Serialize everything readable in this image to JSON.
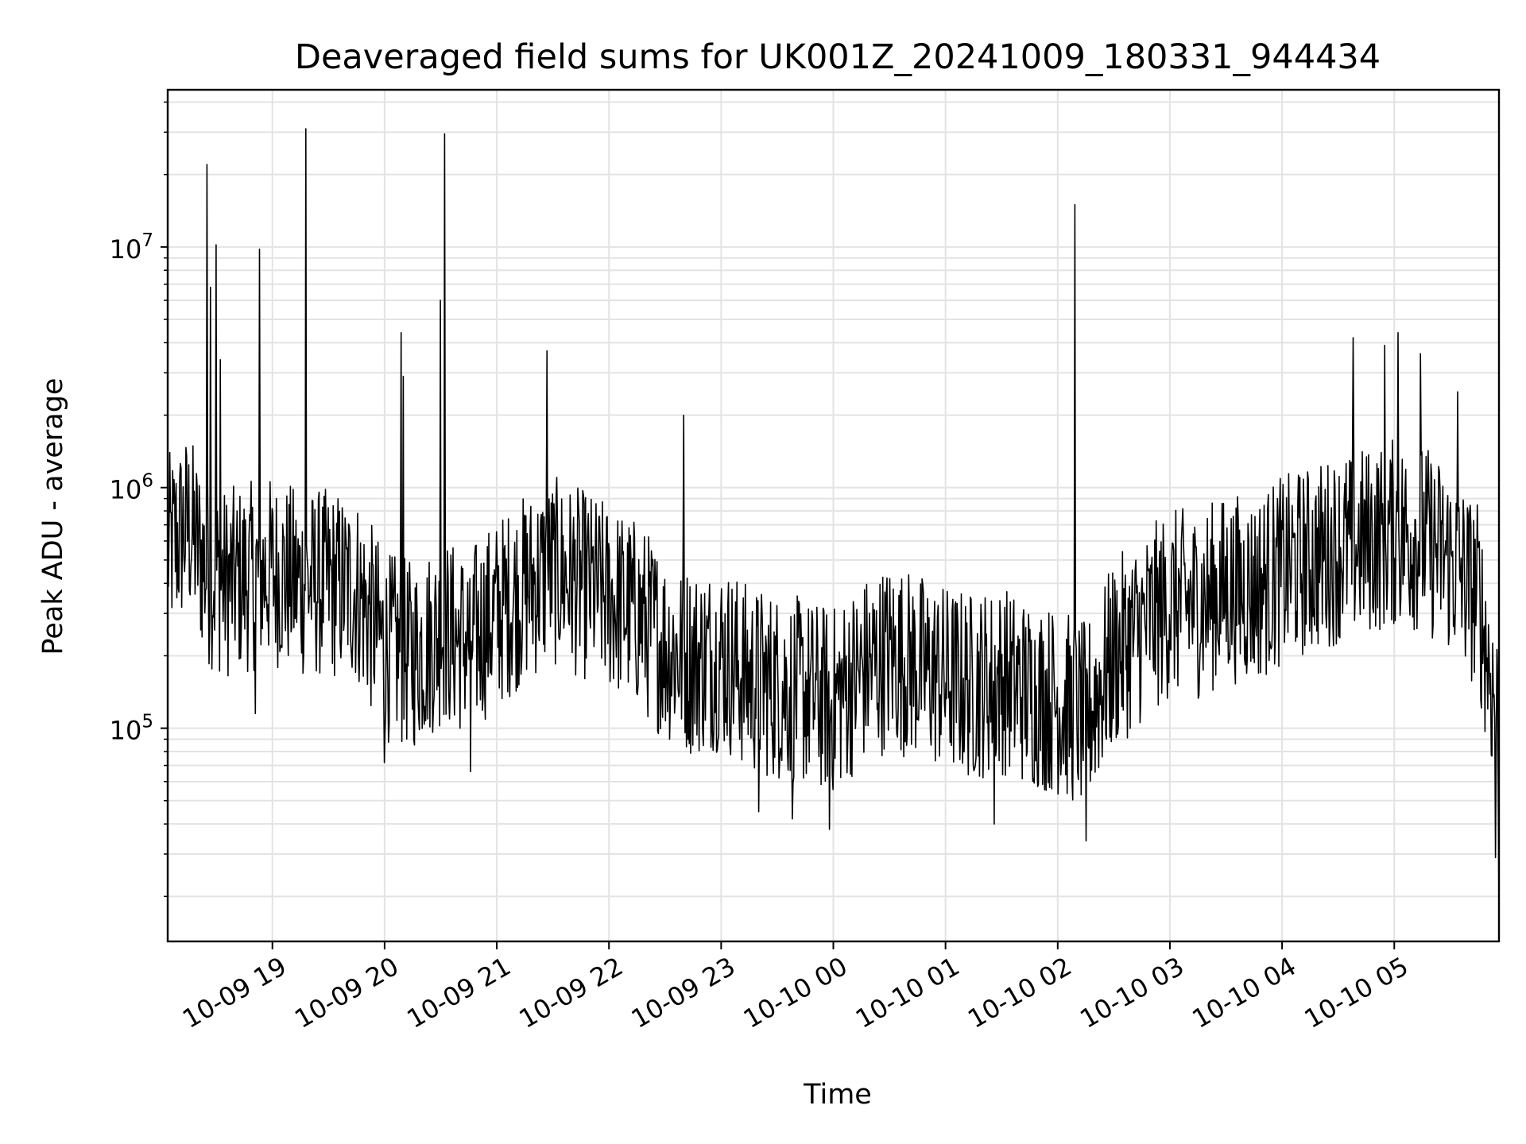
{
  "chart_data": {
    "type": "line",
    "title": "Deaveraged field sums for UK001Z_20241009_180331_944434",
    "xlabel": "Time",
    "ylabel": "Peak ADU - average",
    "yscale": "log",
    "ylim": [
      13000,
      45000000
    ],
    "xlim": [
      "2024-10-09 18:04",
      "2024-10-10 05:56"
    ],
    "grid": true,
    "line_color": "#000000",
    "grid_color": "#e3e3e3",
    "x_ticks": [
      {
        "value": "2024-10-09 19:00",
        "label": "10-09 19"
      },
      {
        "value": "2024-10-09 20:00",
        "label": "10-09 20"
      },
      {
        "value": "2024-10-09 21:00",
        "label": "10-09 21"
      },
      {
        "value": "2024-10-09 22:00",
        "label": "10-09 22"
      },
      {
        "value": "2024-10-09 23:00",
        "label": "10-09 23"
      },
      {
        "value": "2024-10-10 00:00",
        "label": "10-10 00"
      },
      {
        "value": "2024-10-10 01:00",
        "label": "10-10 01"
      },
      {
        "value": "2024-10-10 02:00",
        "label": "10-10 02"
      },
      {
        "value": "2024-10-10 03:00",
        "label": "10-10 03"
      },
      {
        "value": "2024-10-10 04:00",
        "label": "10-10 04"
      },
      {
        "value": "2024-10-10 05:00",
        "label": "10-10 05"
      }
    ],
    "y_ticks": [
      {
        "value": 100000,
        "label": "10",
        "exp": "5"
      },
      {
        "value": 1000000,
        "label": "10",
        "exp": "6"
      },
      {
        "value": 10000000,
        "label": "10",
        "exp": "7"
      }
    ],
    "series": [
      {
        "x": [
          "2024-10-09 18:04",
          "2024-10-09 18:15",
          "2024-10-09 18:25",
          "2024-10-09 18:35",
          "2024-10-09 18:45",
          "2024-10-09 19:00",
          "2024-10-09 19:15",
          "2024-10-09 19:30",
          "2024-10-09 19:45",
          "2024-10-09 20:00",
          "2024-10-09 20:15",
          "2024-10-09 20:30",
          "2024-10-09 20:45",
          "2024-10-09 21:00",
          "2024-10-09 21:15",
          "2024-10-09 21:30",
          "2024-10-09 21:45",
          "2024-10-09 22:00",
          "2024-10-09 22:15",
          "2024-10-09 22:30",
          "2024-10-09 22:45",
          "2024-10-09 23:00",
          "2024-10-09 23:15",
          "2024-10-09 23:30",
          "2024-10-09 23:45",
          "2024-10-10 00:00",
          "2024-10-10 00:15",
          "2024-10-10 00:30",
          "2024-10-10 00:45",
          "2024-10-10 01:00",
          "2024-10-10 01:15",
          "2024-10-10 01:30",
          "2024-10-10 01:45",
          "2024-10-10 02:00",
          "2024-10-10 02:15",
          "2024-10-10 02:30",
          "2024-10-10 02:45",
          "2024-10-10 03:00",
          "2024-10-10 03:15",
          "2024-10-10 03:30",
          "2024-10-10 03:45",
          "2024-10-10 04:00",
          "2024-10-10 04:15",
          "2024-10-10 04:30",
          "2024-10-10 04:45",
          "2024-10-10 05:00",
          "2024-10-10 05:15",
          "2024-10-10 05:30",
          "2024-10-10 05:45",
          "2024-10-10 05:56"
        ],
        "y": [
          550000,
          700000,
          450000,
          400000,
          420000,
          450000,
          400000,
          400000,
          380000,
          220000,
          200000,
          250000,
          230000,
          300000,
          380000,
          450000,
          400000,
          350000,
          300000,
          220000,
          190000,
          200000,
          160000,
          150000,
          140000,
          130000,
          170000,
          200000,
          180000,
          160000,
          150000,
          160000,
          140000,
          130000,
          110000,
          200000,
          260000,
          330000,
          330000,
          380000,
          380000,
          450000,
          500000,
          560000,
          600000,
          650000,
          620000,
          500000,
          350000,
          100000
        ],
        "noise_range": [
          0.4,
          2.5
        ],
        "spikes": [
          {
            "x": "2024-10-09 18:25",
            "y": 22000000
          },
          {
            "x": "2024-10-09 18:27",
            "y": 6800000
          },
          {
            "x": "2024-10-09 18:30",
            "y": 10200000
          },
          {
            "x": "2024-10-09 18:32",
            "y": 3400000
          },
          {
            "x": "2024-10-09 18:53",
            "y": 9800000
          },
          {
            "x": "2024-10-09 19:18",
            "y": 31000000
          },
          {
            "x": "2024-10-09 20:09",
            "y": 4400000
          },
          {
            "x": "2024-10-09 20:10",
            "y": 2900000
          },
          {
            "x": "2024-10-09 20:30",
            "y": 6000000
          },
          {
            "x": "2024-10-09 20:32",
            "y": 29500000
          },
          {
            "x": "2024-10-09 21:27",
            "y": 3700000
          },
          {
            "x": "2024-10-09 22:40",
            "y": 2000000
          },
          {
            "x": "2024-10-10 02:09",
            "y": 15000000
          },
          {
            "x": "2024-10-10 04:38",
            "y": 4200000
          },
          {
            "x": "2024-10-10 04:55",
            "y": 3900000
          },
          {
            "x": "2024-10-10 05:02",
            "y": 4400000
          },
          {
            "x": "2024-10-10 05:14",
            "y": 3600000
          },
          {
            "x": "2024-10-10 05:34",
            "y": 2500000
          }
        ],
        "dips": [
          {
            "x": "2024-10-09 18:51",
            "y": 115000
          },
          {
            "x": "2024-10-09 20:00",
            "y": 72000
          },
          {
            "x": "2024-10-09 20:46",
            "y": 66000
          },
          {
            "x": "2024-10-09 23:20",
            "y": 45000
          },
          {
            "x": "2024-10-09 23:38",
            "y": 42000
          },
          {
            "x": "2024-10-09 23:58",
            "y": 38000
          },
          {
            "x": "2024-10-10 01:26",
            "y": 40000
          },
          {
            "x": "2024-10-10 02:15",
            "y": 34000
          },
          {
            "x": "2024-10-10 05:54",
            "y": 29000
          },
          {
            "x": "2024-10-10 05:56",
            "y": 18000
          }
        ]
      }
    ]
  }
}
